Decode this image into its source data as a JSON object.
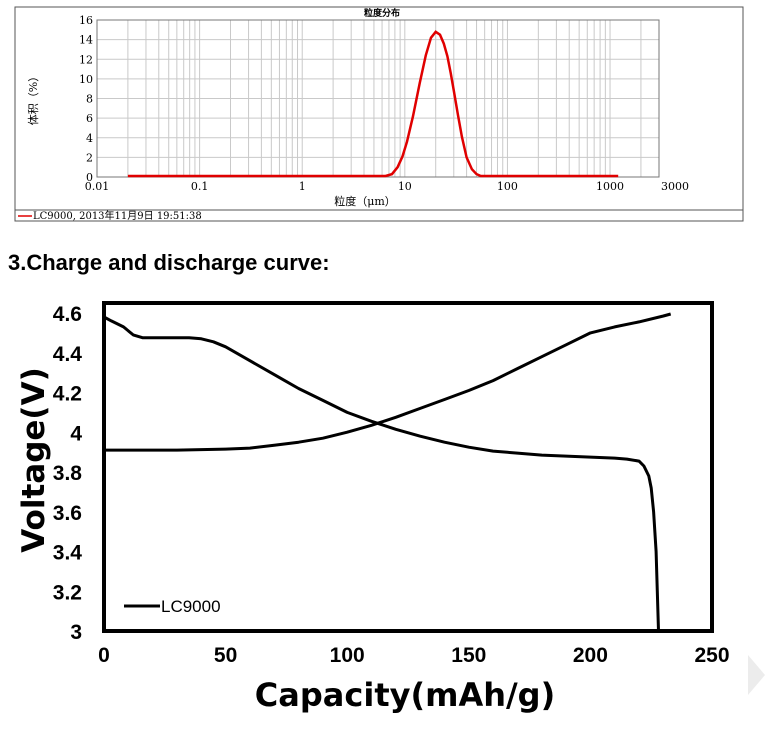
{
  "section_heading": "3.Charge and discharge curve:",
  "chart_data": [
    {
      "type": "line",
      "title": "粒度分布",
      "xlabel": "粒度（μm）",
      "ylabel": "体积（%）",
      "xscale": "log",
      "xlim": [
        0.01,
        3000
      ],
      "ylim": [
        0,
        16
      ],
      "grid": true,
      "x_tick_labels": [
        "0.01",
        "0.1",
        "1",
        "10",
        "100",
        "1000",
        "3000"
      ],
      "x_tick_values": [
        0.01,
        0.1,
        1,
        10,
        100,
        1000,
        3000
      ],
      "y_ticks": [
        0,
        2,
        4,
        6,
        8,
        10,
        12,
        14,
        16
      ],
      "footer_label": "LC9000, 2013年11月9日 19:51:38",
      "series": [
        {
          "name": "LC9000",
          "color": "#e00000",
          "x": [
            0.02,
            1,
            6.5,
            7.5,
            8.5,
            9.5,
            10.5,
            12,
            14,
            16,
            18,
            20,
            22,
            24,
            26,
            28,
            30,
            33,
            36,
            40,
            45,
            50,
            55,
            60,
            100,
            1000,
            1200
          ],
          "y": [
            0.1,
            0.1,
            0.1,
            0.3,
            1.0,
            2.1,
            3.6,
            6.2,
            9.6,
            12.4,
            14.2,
            14.8,
            14.5,
            13.6,
            12.3,
            10.6,
            8.8,
            6.3,
            4.1,
            2.0,
            0.8,
            0.3,
            0.1,
            0.1,
            0.1,
            0.1,
            0.1
          ]
        }
      ]
    },
    {
      "type": "line",
      "title": "",
      "xlabel": "Capacity(mAh/g)",
      "ylabel": "Voltage(V)",
      "xlim": [
        0,
        250
      ],
      "ylim": [
        3,
        4.6
      ],
      "x_ticks": [
        0,
        50,
        100,
        150,
        200,
        250
      ],
      "y_tick_labels": [
        "3",
        "3.2",
        "3.4",
        "3.6",
        "3.8",
        "4",
        "4.2",
        "4.4",
        "4.6"
      ],
      "y_tick_values": [
        3,
        3.2,
        3.4,
        3.6,
        3.8,
        4.0,
        4.2,
        4.4,
        4.6
      ],
      "legend": {
        "position": "bottom-left",
        "entries": [
          "LC9000"
        ]
      },
      "series": [
        {
          "name": "LC9000",
          "color": "#000000",
          "curves": [
            {
              "x": [
                0,
                10,
                30,
                50,
                60,
                70,
                80,
                90,
                100,
                110,
                120,
                130,
                140,
                150,
                160,
                170,
                180,
                190,
                200,
                210,
                220,
                230,
                233
              ],
              "y": [
                3.91,
                3.91,
                3.91,
                3.915,
                3.92,
                3.935,
                3.95,
                3.97,
                4.0,
                4.035,
                4.075,
                4.12,
                4.165,
                4.21,
                4.26,
                4.32,
                4.38,
                4.44,
                4.5,
                4.53,
                4.555,
                4.585,
                4.595
              ]
            },
            {
              "x": [
                0,
                3,
                8,
                12,
                16,
                20,
                25,
                30,
                35,
                40,
                45,
                50,
                60,
                70,
                80,
                90,
                100,
                110,
                120,
                130,
                140,
                150,
                160,
                170,
                180,
                190,
                200,
                210,
                215,
                220,
                222,
                224,
                225,
                226,
                227,
                227.5,
                228
              ],
              "y": [
                4.58,
                4.56,
                4.53,
                4.49,
                4.475,
                4.475,
                4.475,
                4.475,
                4.475,
                4.47,
                4.455,
                4.43,
                4.36,
                4.29,
                4.22,
                4.16,
                4.1,
                4.055,
                4.015,
                3.98,
                3.95,
                3.925,
                3.905,
                3.895,
                3.885,
                3.88,
                3.875,
                3.87,
                3.865,
                3.855,
                3.83,
                3.78,
                3.72,
                3.6,
                3.4,
                3.2,
                3.0
              ]
            }
          ]
        }
      ]
    }
  ]
}
